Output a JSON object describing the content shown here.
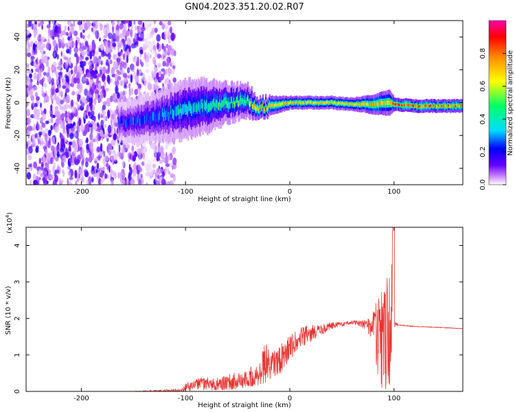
{
  "page_title": "GN04.2023.351.20.02.R07",
  "chart_data": [
    {
      "type": "heatmap",
      "xlabel": "Height of straight line (km)",
      "ylabel": "Frequency (Hz)",
      "xlim": [
        -253,
        166
      ],
      "ylim": [
        -50,
        50
      ],
      "x_ticks": [
        -200,
        -100,
        0,
        100
      ],
      "y_ticks": [
        -40,
        -20,
        0,
        20,
        40
      ],
      "colorbar": {
        "label": "Normalized spectral amplitude",
        "range": [
          0,
          1
        ],
        "ticks": [
          "0.0",
          "0.2",
          "0.4",
          "0.6",
          "0.8"
        ],
        "colors": [
          "#ffffff",
          "#cc88ff",
          "#6600ff",
          "#0000ff",
          "#00ddff",
          "#00ff66",
          "#ffff00",
          "#ff8800",
          "#ff0000",
          "#ff00aa"
        ]
      },
      "description": "Broadband noise (amplitude ~0.1-0.2) from -253 to ~-115 km; a signal ridge rising from about -8 Hz at -130 km to about 0 Hz near -30 km; a narrow strong carrier at roughly 0 Hz from -30 km to 166 km (amplitude 0.4-0.9).",
      "ridge": {
        "x": [
          -165,
          -140,
          -120,
          -100,
          -80,
          -60,
          -40,
          -30,
          -20,
          0,
          20,
          40,
          60,
          80,
          95,
          100,
          120,
          166
        ],
        "center_hz": [
          -12,
          -10,
          -7,
          -4,
          -2,
          0,
          1,
          -3,
          -2,
          0,
          0,
          0,
          -1,
          -1,
          0,
          -1,
          -2,
          -2
        ],
        "halfwidth_hz": [
          6,
          7,
          8,
          9,
          8,
          6,
          5,
          3,
          3,
          2,
          2,
          2,
          2,
          3,
          4,
          2,
          2,
          2
        ],
        "amplitude": [
          0.2,
          0.25,
          0.3,
          0.35,
          0.4,
          0.45,
          0.5,
          0.75,
          0.7,
          0.75,
          0.7,
          0.7,
          0.7,
          0.75,
          0.7,
          0.9,
          0.85,
          0.85
        ]
      }
    },
    {
      "type": "line",
      "xlabel": "Height of straight line (km)",
      "ylabel": "SNR (10 * v/v)",
      "multiplier_label": "(x10",
      "multiplier_exp": "4",
      "multiplier_close": ")",
      "xlim": [
        -253,
        166
      ],
      "ylim": [
        0,
        4.5
      ],
      "x_ticks": [
        -200,
        -100,
        0,
        100
      ],
      "y_ticks": [
        0,
        1,
        2,
        3,
        4
      ],
      "line_color": "#e8312e",
      "envelope": {
        "x": [
          -253,
          -150,
          -105,
          -100,
          -90,
          -70,
          -50,
          -30,
          -25,
          -22,
          -20,
          -10,
          0,
          10,
          20,
          30,
          40,
          50,
          60,
          70,
          75,
          80,
          85,
          90,
          95,
          98,
          100,
          105,
          120,
          140,
          166
        ],
        "mean": [
          0.0,
          0.0,
          0.02,
          0.1,
          0.2,
          0.22,
          0.3,
          0.45,
          0.8,
          0.9,
          0.6,
          0.85,
          1.2,
          1.45,
          1.6,
          1.7,
          1.8,
          1.85,
          1.9,
          1.85,
          1.8,
          1.8,
          1.5,
          1.5,
          1.5,
          1.8,
          1.85,
          1.82,
          1.78,
          1.76,
          1.72
        ],
        "spread": [
          0.0,
          0.005,
          0.05,
          0.12,
          0.15,
          0.2,
          0.25,
          0.3,
          0.6,
          0.7,
          0.4,
          0.4,
          0.35,
          0.3,
          0.25,
          0.15,
          0.1,
          0.06,
          0.06,
          0.1,
          0.2,
          0.4,
          1.3,
          1.5,
          1.8,
          0.6,
          0.1,
          0.01,
          0.01,
          0.01,
          0.01
        ]
      }
    }
  ]
}
